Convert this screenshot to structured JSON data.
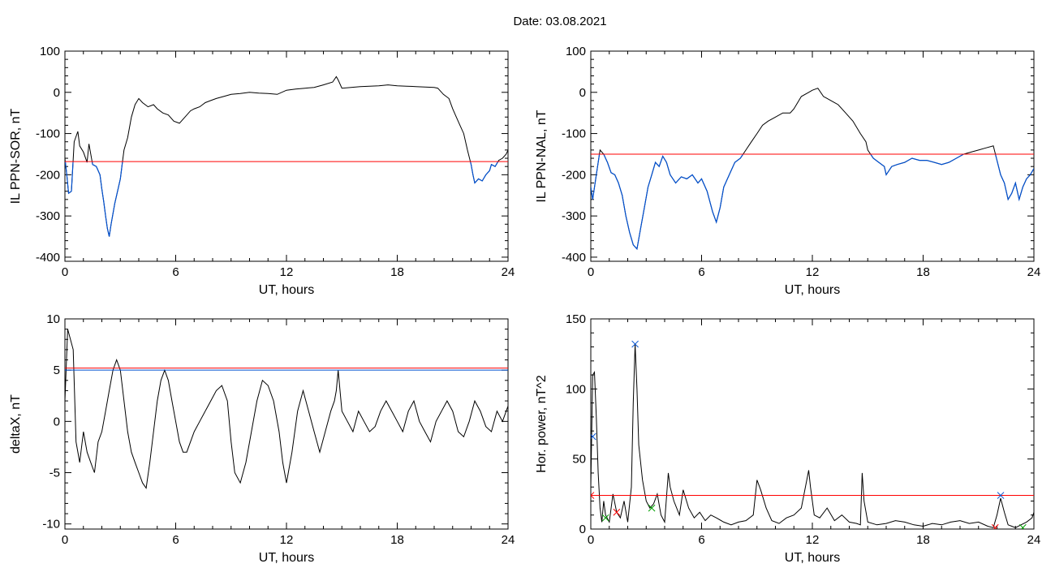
{
  "header": {
    "date_label": "Date:  03.08.2021"
  },
  "chart_data": [
    {
      "type": "line",
      "ylabel": "IL PPN-SOR, nT",
      "xlabel": "UT, hours",
      "xlim": [
        0,
        24
      ],
      "ylim": [
        -410,
        100
      ],
      "xticks": [
        "0",
        "6",
        "12",
        "18",
        "24"
      ],
      "xtick_values": [
        0,
        6,
        12,
        18,
        24
      ],
      "yticks": [
        "100",
        "0",
        "-100",
        "-200",
        "-300",
        "-400"
      ],
      "ytick_values": [
        100,
        0,
        -100,
        -200,
        -300,
        -400
      ],
      "threshold": -168,
      "threshold_color": "#ff0000",
      "below_color": "#0050d0",
      "line_color": "#000000",
      "series": [
        {
          "x": [
            0,
            0.1,
            0.2,
            0.35,
            0.5,
            0.7,
            0.8,
            1.0,
            1.2,
            1.3,
            1.5,
            1.7,
            1.9,
            2.0,
            2.1,
            2.2,
            2.3,
            2.4,
            2.5,
            2.7,
            2.9,
            3.0,
            3.1,
            3.2,
            3.4,
            3.6,
            3.8,
            4.0,
            4.2,
            4.5,
            4.8,
            5.0,
            5.3,
            5.6,
            5.9,
            6.2,
            6.5,
            6.8,
            7.0,
            7.3,
            7.6,
            7.9,
            8.2,
            8.6,
            9.0,
            9.5,
            10,
            10.5,
            11,
            11.5,
            12,
            12.5,
            13,
            13.5,
            14,
            14.5,
            14.7,
            14.8,
            15,
            15.5,
            16,
            16.5,
            17,
            17.5,
            18,
            18.5,
            19,
            19.5,
            20,
            20.2,
            20.5,
            20.8,
            21,
            21.2,
            21.4,
            21.6,
            21.8,
            22.0,
            22.1,
            22.2,
            22.4,
            22.6,
            22.8,
            23.0,
            23.1,
            23.3,
            23.5,
            23.7,
            23.9,
            24
          ],
          "values": [
            -160,
            -200,
            -245,
            -240,
            -120,
            -95,
            -130,
            -145,
            -170,
            -125,
            -175,
            -180,
            -200,
            -235,
            -265,
            -300,
            -330,
            -350,
            -320,
            -270,
            -230,
            -210,
            -175,
            -140,
            -110,
            -60,
            -30,
            -15,
            -25,
            -35,
            -30,
            -40,
            -50,
            -55,
            -70,
            -75,
            -60,
            -45,
            -40,
            -35,
            -25,
            -20,
            -15,
            -10,
            -5,
            -3,
            0,
            -2,
            -3,
            -5,
            5,
            8,
            10,
            12,
            18,
            25,
            38,
            30,
            10,
            12,
            14,
            15,
            16,
            18,
            16,
            15,
            14,
            13,
            12,
            10,
            -5,
            -15,
            -40,
            -60,
            -80,
            -100,
            -140,
            -175,
            -200,
            -220,
            -210,
            -215,
            -200,
            -190,
            -175,
            -180,
            -165,
            -160,
            -150,
            -140
          ]
        }
      ]
    },
    {
      "type": "line",
      "ylabel": "IL PPN-NAL, nT",
      "xlabel": "UT, hours",
      "xlim": [
        0,
        24
      ],
      "ylim": [
        -410,
        100
      ],
      "xticks": [
        "0",
        "6",
        "12",
        "18",
        "24"
      ],
      "xtick_values": [
        0,
        6,
        12,
        18,
        24
      ],
      "yticks": [
        "100",
        "0",
        "-100",
        "-200",
        "-300",
        "-400"
      ],
      "ytick_values": [
        100,
        0,
        -100,
        -200,
        -300,
        -400
      ],
      "threshold": -150,
      "threshold_color": "#ff0000",
      "below_color": "#0050d0",
      "line_color": "#000000",
      "series": [
        {
          "x": [
            0,
            0.1,
            0.3,
            0.5,
            0.7,
            0.9,
            1.1,
            1.3,
            1.5,
            1.7,
            1.9,
            2.1,
            2.3,
            2.5,
            2.7,
            2.9,
            3.1,
            3.3,
            3.5,
            3.7,
            3.9,
            4.1,
            4.3,
            4.6,
            4.9,
            5.2,
            5.5,
            5.8,
            6.0,
            6.3,
            6.6,
            6.8,
            7.0,
            7.2,
            7.5,
            7.8,
            8.1,
            8.4,
            8.7,
            9.0,
            9.3,
            9.6,
            10.0,
            10.4,
            10.8,
            11.0,
            11.4,
            11.8,
            12.0,
            12.3,
            12.6,
            13.0,
            13.4,
            13.8,
            14.2,
            14.6,
            14.9,
            15.0,
            15.3,
            15.6,
            15.9,
            16.0,
            16.3,
            16.6,
            17.0,
            17.4,
            17.8,
            18.2,
            18.6,
            19.0,
            19.4,
            19.8,
            20.2,
            20.6,
            21.0,
            21.4,
            21.8,
            22.0,
            22.2,
            22.4,
            22.6,
            22.8,
            23.0,
            23.2,
            23.4,
            23.6,
            23.8,
            24
          ],
          "values": [
            -230,
            -260,
            -200,
            -140,
            -150,
            -170,
            -195,
            -200,
            -220,
            -250,
            -300,
            -340,
            -370,
            -380,
            -330,
            -280,
            -230,
            -200,
            -170,
            -180,
            -155,
            -170,
            -200,
            -220,
            -205,
            -210,
            -200,
            -220,
            -210,
            -240,
            -290,
            -315,
            -280,
            -230,
            -200,
            -170,
            -160,
            -140,
            -120,
            -100,
            -80,
            -70,
            -60,
            -50,
            -50,
            -40,
            -10,
            0,
            5,
            10,
            -10,
            -20,
            -30,
            -50,
            -70,
            -100,
            -120,
            -140,
            -160,
            -170,
            -180,
            -200,
            -180,
            -175,
            -170,
            -160,
            -165,
            -165,
            -170,
            -175,
            -170,
            -160,
            -150,
            -145,
            -140,
            -135,
            -130,
            -165,
            -200,
            -220,
            -260,
            -245,
            -220,
            -260,
            -230,
            -210,
            -200,
            -185
          ]
        }
      ]
    },
    {
      "type": "line",
      "ylabel": "deltaX, nT",
      "xlabel": "UT, hours",
      "xlim": [
        0,
        24
      ],
      "ylim": [
        -10.5,
        10
      ],
      "xticks": [
        "0",
        "6",
        "12",
        "18",
        "24"
      ],
      "xtick_values": [
        0,
        6,
        12,
        18,
        24
      ],
      "yticks": [
        "10",
        "5",
        "0",
        "-5",
        "-10"
      ],
      "ytick_values": [
        10,
        5,
        0,
        -5,
        -10
      ],
      "thresholds": [
        {
          "value": 5.2,
          "color": "#ff0000"
        },
        {
          "value": 5.0,
          "color": "#0050d0"
        }
      ],
      "line_color": "#000000",
      "series": [
        {
          "x": [
            0,
            0.15,
            0.3,
            0.45,
            0.6,
            0.8,
            1.0,
            1.2,
            1.4,
            1.6,
            1.8,
            2.0,
            2.2,
            2.4,
            2.6,
            2.8,
            3.0,
            3.2,
            3.4,
            3.6,
            3.8,
            4.0,
            4.2,
            4.4,
            4.6,
            4.8,
            5.0,
            5.2,
            5.4,
            5.6,
            5.8,
            6.0,
            6.2,
            6.4,
            6.6,
            6.8,
            7.0,
            7.3,
            7.6,
            7.9,
            8.2,
            8.5,
            8.8,
            9.0,
            9.2,
            9.5,
            9.8,
            10.1,
            10.4,
            10.7,
            11.0,
            11.3,
            11.6,
            11.8,
            12.0,
            12.3,
            12.6,
            12.9,
            13.2,
            13.5,
            13.8,
            14.1,
            14.4,
            14.6,
            14.7,
            14.8,
            15.0,
            15.3,
            15.6,
            15.9,
            16.2,
            16.5,
            16.8,
            17.1,
            17.4,
            17.7,
            18.0,
            18.3,
            18.6,
            18.9,
            19.2,
            19.5,
            19.8,
            20.1,
            20.4,
            20.7,
            21.0,
            21.3,
            21.6,
            21.9,
            22.2,
            22.5,
            22.8,
            23.1,
            23.4,
            23.7,
            24
          ],
          "values": [
            2,
            9,
            8,
            7,
            -2,
            -4,
            -1,
            -3,
            -4,
            -5,
            -2,
            -1,
            1,
            3,
            5,
            6,
            5,
            2,
            -1,
            -3,
            -4,
            -5,
            -6,
            -6.5,
            -4,
            -1,
            2,
            4,
            5,
            4,
            2,
            0,
            -2,
            -3,
            -3,
            -2,
            -1,
            0,
            1,
            2,
            3,
            3.5,
            2,
            -2,
            -5,
            -6,
            -4,
            -1,
            2,
            4,
            3.5,
            2,
            -1,
            -4,
            -6,
            -3,
            1,
            3,
            1,
            -1,
            -3,
            -1,
            1,
            2,
            3,
            5,
            1,
            0,
            -1,
            1,
            0,
            -1,
            -0.5,
            1,
            2,
            1,
            0,
            -1,
            1,
            2,
            0,
            -1,
            -2,
            0,
            1,
            2,
            1,
            -1,
            -1.5,
            0,
            2,
            1,
            -0.5,
            -1,
            1,
            0,
            1.5
          ]
        }
      ]
    },
    {
      "type": "line",
      "ylabel": "Hor. power, nT^2",
      "xlabel": "UT, hours",
      "xlim": [
        0,
        24
      ],
      "ylim": [
        0,
        150
      ],
      "xticks": [
        "0",
        "6",
        "12",
        "18",
        "24"
      ],
      "xtick_values": [
        0,
        6,
        12,
        18,
        24
      ],
      "yticks": [
        "150",
        "100",
        "50",
        "0"
      ],
      "ytick_values": [
        150,
        100,
        50,
        0
      ],
      "threshold": 24,
      "threshold_color": "#ff0000",
      "line_color": "#000000",
      "markers": [
        {
          "x": 2.4,
          "y": 132,
          "color": "#0050d0"
        },
        {
          "x": 0.1,
          "y": 66,
          "color": "#0050d0"
        },
        {
          "x": 22.2,
          "y": 24,
          "color": "#0050d0"
        },
        {
          "x": 0.0,
          "y": 24,
          "color": "#ff0000"
        },
        {
          "x": 1.4,
          "y": 12,
          "color": "#ff0000"
        },
        {
          "x": 21.9,
          "y": 1,
          "color": "#ff0000"
        },
        {
          "x": 0.8,
          "y": 8,
          "color": "#00a000"
        },
        {
          "x": 3.3,
          "y": 15,
          "color": "#00a000"
        },
        {
          "x": 23.4,
          "y": 1,
          "color": "#00a000"
        }
      ],
      "series": [
        {
          "x": [
            0,
            0.1,
            0.2,
            0.3,
            0.4,
            0.5,
            0.6,
            0.7,
            0.8,
            1.0,
            1.2,
            1.4,
            1.6,
            1.8,
            2.0,
            2.2,
            2.3,
            2.4,
            2.5,
            2.6,
            2.8,
            3.0,
            3.2,
            3.4,
            3.6,
            3.8,
            4.0,
            4.2,
            4.3,
            4.5,
            4.8,
            5.0,
            5.3,
            5.6,
            5.9,
            6.2,
            6.5,
            6.8,
            7.2,
            7.6,
            8.0,
            8.4,
            8.8,
            9.0,
            9.2,
            9.5,
            9.8,
            10.2,
            10.6,
            11.0,
            11.4,
            11.8,
            11.9,
            12.1,
            12.4,
            12.8,
            13.2,
            13.6,
            14.0,
            14.4,
            14.6,
            14.7,
            14.8,
            15.0,
            15.5,
            16.0,
            16.5,
            17.0,
            17.5,
            18.0,
            18.5,
            19.0,
            19.5,
            20.0,
            20.5,
            21.0,
            21.5,
            21.8,
            22.0,
            22.2,
            22.4,
            22.6,
            22.8,
            23.0,
            23.3,
            23.6,
            23.9,
            24
          ],
          "values": [
            30,
            110,
            112,
            80,
            40,
            15,
            5,
            20,
            10,
            5,
            25,
            12,
            8,
            20,
            5,
            30,
            90,
            132,
            100,
            60,
            35,
            20,
            15,
            18,
            25,
            10,
            5,
            40,
            30,
            20,
            10,
            28,
            15,
            8,
            12,
            6,
            10,
            8,
            5,
            3,
            5,
            6,
            10,
            35,
            28,
            15,
            6,
            4,
            8,
            10,
            15,
            42,
            30,
            10,
            8,
            15,
            6,
            10,
            5,
            4,
            3,
            40,
            20,
            5,
            3,
            4,
            6,
            5,
            3,
            2,
            4,
            3,
            5,
            6,
            4,
            5,
            2,
            1,
            10,
            22,
            12,
            3,
            2,
            1,
            3,
            5,
            8,
            12
          ]
        }
      ]
    }
  ]
}
